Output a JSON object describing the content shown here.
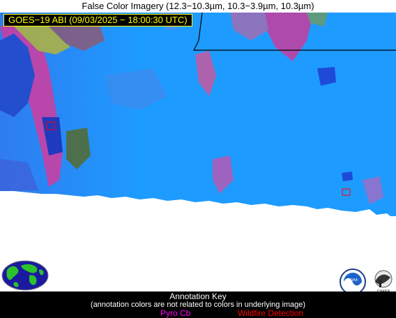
{
  "header": {
    "title": "False Color Imagery (12.3−10.3µm, 10.3−3.9µm, 10.3µm)",
    "timestamp": "GOES−19 ABI (09/03/2025 − 18:00:30 UTC)"
  },
  "annotation_key": {
    "title": "Annotation Key",
    "subtitle": "(annotation colors are not related to colors in underlying image)",
    "items": [
      {
        "label": "Pyro Cb",
        "color": "#ff00ff"
      },
      {
        "label": "Wildfire Detection",
        "color": "#ff0000"
      }
    ]
  },
  "logos": {
    "noaa": "NOAA",
    "cimss": "CIMSS"
  },
  "colors": {
    "sky_blue": "#1e9bff",
    "pink_cloud": "#d23c9e",
    "yellow_cloud": "#b4b43c",
    "deep_blue": "#1e3cd2"
  }
}
